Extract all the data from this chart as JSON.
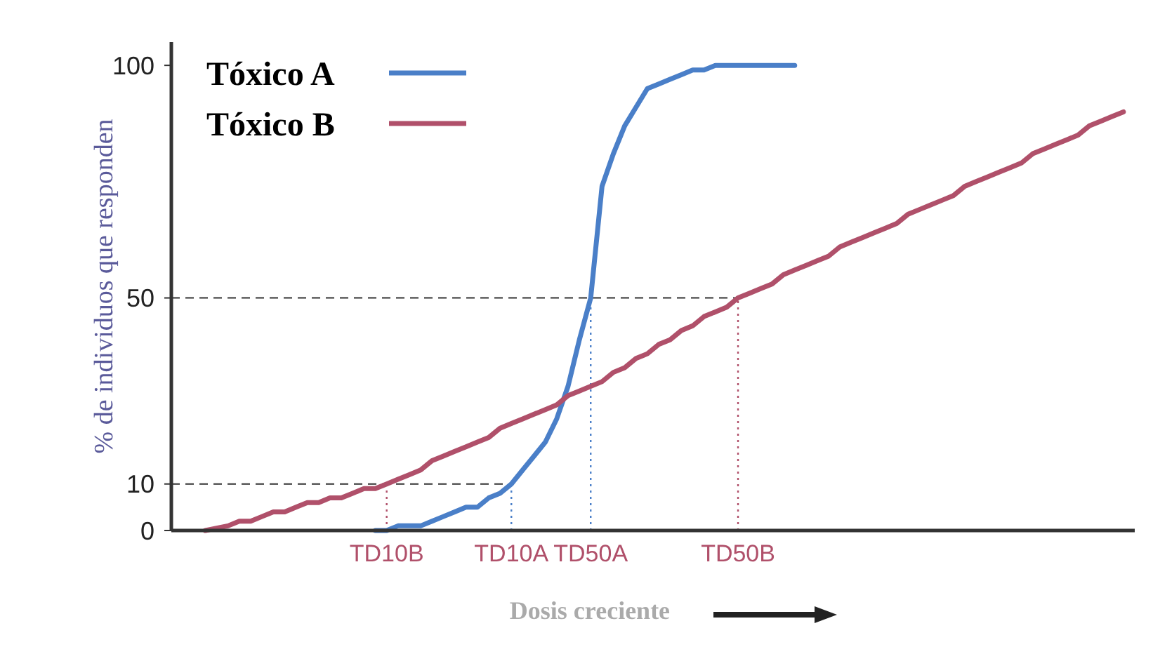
{
  "chart_data": {
    "type": "line",
    "xlabel": "Dosis creciente",
    "ylabel": "% de individuos que responden",
    "ylim": [
      0,
      105
    ],
    "yticks": [
      0,
      10,
      50,
      100
    ],
    "grid": false,
    "legend": "top left",
    "marker": "none",
    "line_style": "solid",
    "categories": [
      null,
      null,
      null,
      null,
      null,
      null,
      null,
      null,
      null,
      null,
      null,
      null,
      null,
      null,
      null,
      null,
      null,
      null,
      null,
      "TD10B",
      null,
      null,
      null,
      null,
      null,
      null,
      null,
      null,
      null,
      null,
      "TD10A",
      null,
      null,
      null,
      null,
      null,
      null,
      "TD50A",
      null,
      null,
      null,
      null,
      null,
      null,
      null,
      null,
      null,
      null,
      null,
      null,
      "TD50B",
      null,
      null,
      null,
      null,
      null,
      null,
      null,
      null,
      null,
      null,
      null,
      null,
      null,
      null,
      null,
      null,
      null,
      null,
      null,
      null,
      null,
      null,
      null,
      null,
      null,
      null,
      null,
      null,
      null,
      null,
      null,
      null,
      null,
      null,
      null
    ],
    "series": [
      {
        "name": "Tóxico A",
        "color": "#4a7fc8",
        "values": [
          null,
          null,
          null,
          null,
          null,
          null,
          null,
          null,
          null,
          null,
          null,
          null,
          null,
          null,
          null,
          null,
          null,
          null,
          0,
          0,
          1,
          1,
          1,
          2,
          3,
          4,
          5,
          5,
          7,
          8,
          10,
          13,
          16,
          19,
          24,
          31,
          41,
          50,
          74,
          81,
          87,
          91,
          95,
          96,
          97,
          98,
          99,
          99,
          100,
          100,
          100,
          100,
          100,
          100,
          100,
          100,
          null,
          null,
          null,
          null,
          null,
          null,
          null,
          null,
          null,
          null,
          null,
          null,
          null,
          null,
          null,
          null,
          null,
          null,
          null,
          null,
          null,
          null,
          null,
          null,
          null,
          null,
          null,
          null,
          null,
          null
        ]
      },
      {
        "name": "Tóxico B",
        "color": "#b0506a",
        "values": [
          null,
          null,
          null,
          0,
          0.5,
          1,
          2,
          2,
          3,
          4,
          4,
          5,
          6,
          6,
          7,
          7,
          8,
          9,
          9,
          10,
          11,
          12,
          13,
          15,
          16,
          17,
          18,
          19,
          20,
          22,
          23,
          24,
          25,
          26,
          27,
          29,
          30,
          31,
          32,
          34,
          35,
          37,
          38,
          40,
          41,
          43,
          44,
          46,
          47,
          48,
          50,
          51,
          52,
          53,
          55,
          56,
          57,
          58,
          59,
          61,
          62,
          63,
          64,
          65,
          66,
          68,
          69,
          70,
          71,
          72,
          74,
          75,
          76,
          77,
          78,
          79,
          81,
          82,
          83,
          84,
          85,
          87,
          88,
          89,
          90,
          null
        ]
      }
    ],
    "ref_lines": [
      {
        "axis": "y",
        "value": 10,
        "line_style": "dashed",
        "color": "#333333"
      },
      {
        "axis": "y",
        "value": 50,
        "line_style": "dashed",
        "color": "#333333"
      },
      {
        "axis": "x",
        "value": "TD10B",
        "line_style": "dotted",
        "color": "#b0506a"
      },
      {
        "axis": "x",
        "value": "TD10A",
        "line_style": "dotted",
        "color": "#4a7fc8"
      },
      {
        "axis": "x",
        "value": "TD50A",
        "line_style": "dotted",
        "color": "#4a7fc8"
      },
      {
        "axis": "x",
        "value": "TD50B",
        "line_style": "dotted",
        "color": "#b0506a"
      }
    ]
  }
}
